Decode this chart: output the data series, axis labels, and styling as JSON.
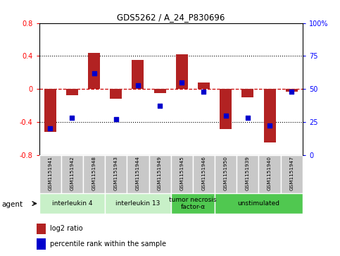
{
  "title": "GDS5262 / A_24_P830696",
  "samples": [
    "GSM1151941",
    "GSM1151942",
    "GSM1151948",
    "GSM1151943",
    "GSM1151944",
    "GSM1151949",
    "GSM1151945",
    "GSM1151946",
    "GSM1151950",
    "GSM1151939",
    "GSM1151940",
    "GSM1151947"
  ],
  "log2_ratio": [
    -0.52,
    -0.08,
    0.44,
    -0.12,
    0.35,
    -0.05,
    0.42,
    0.08,
    -0.49,
    -0.1,
    -0.65,
    -0.03
  ],
  "percentile_rank": [
    20,
    28,
    62,
    27,
    53,
    37,
    55,
    48,
    30,
    28,
    22,
    48
  ],
  "agents": [
    {
      "label": "interleukin 4",
      "start": 0,
      "end": 3,
      "color": "#c8f0c8"
    },
    {
      "label": "interleukin 13",
      "start": 3,
      "end": 6,
      "color": "#c8f0c8"
    },
    {
      "label": "tumor necrosis\nfactor-α",
      "start": 6,
      "end": 8,
      "color": "#50c850"
    },
    {
      "label": "unstimulated",
      "start": 8,
      "end": 12,
      "color": "#50c850"
    }
  ],
  "ylim": [
    -0.8,
    0.8
  ],
  "y2lim": [
    0,
    100
  ],
  "yticks": [
    -0.8,
    -0.4,
    0.0,
    0.4,
    0.8
  ],
  "y2ticks": [
    0,
    25,
    50,
    75,
    100
  ],
  "bar_color": "#b22222",
  "dot_color": "#0000cc",
  "hline_color": "#cc0000",
  "dotline_color": "black",
  "legend_red_label": "log2 ratio",
  "legend_blue_label": "percentile rank within the sample",
  "agent_label": "agent",
  "bar_width": 0.55
}
